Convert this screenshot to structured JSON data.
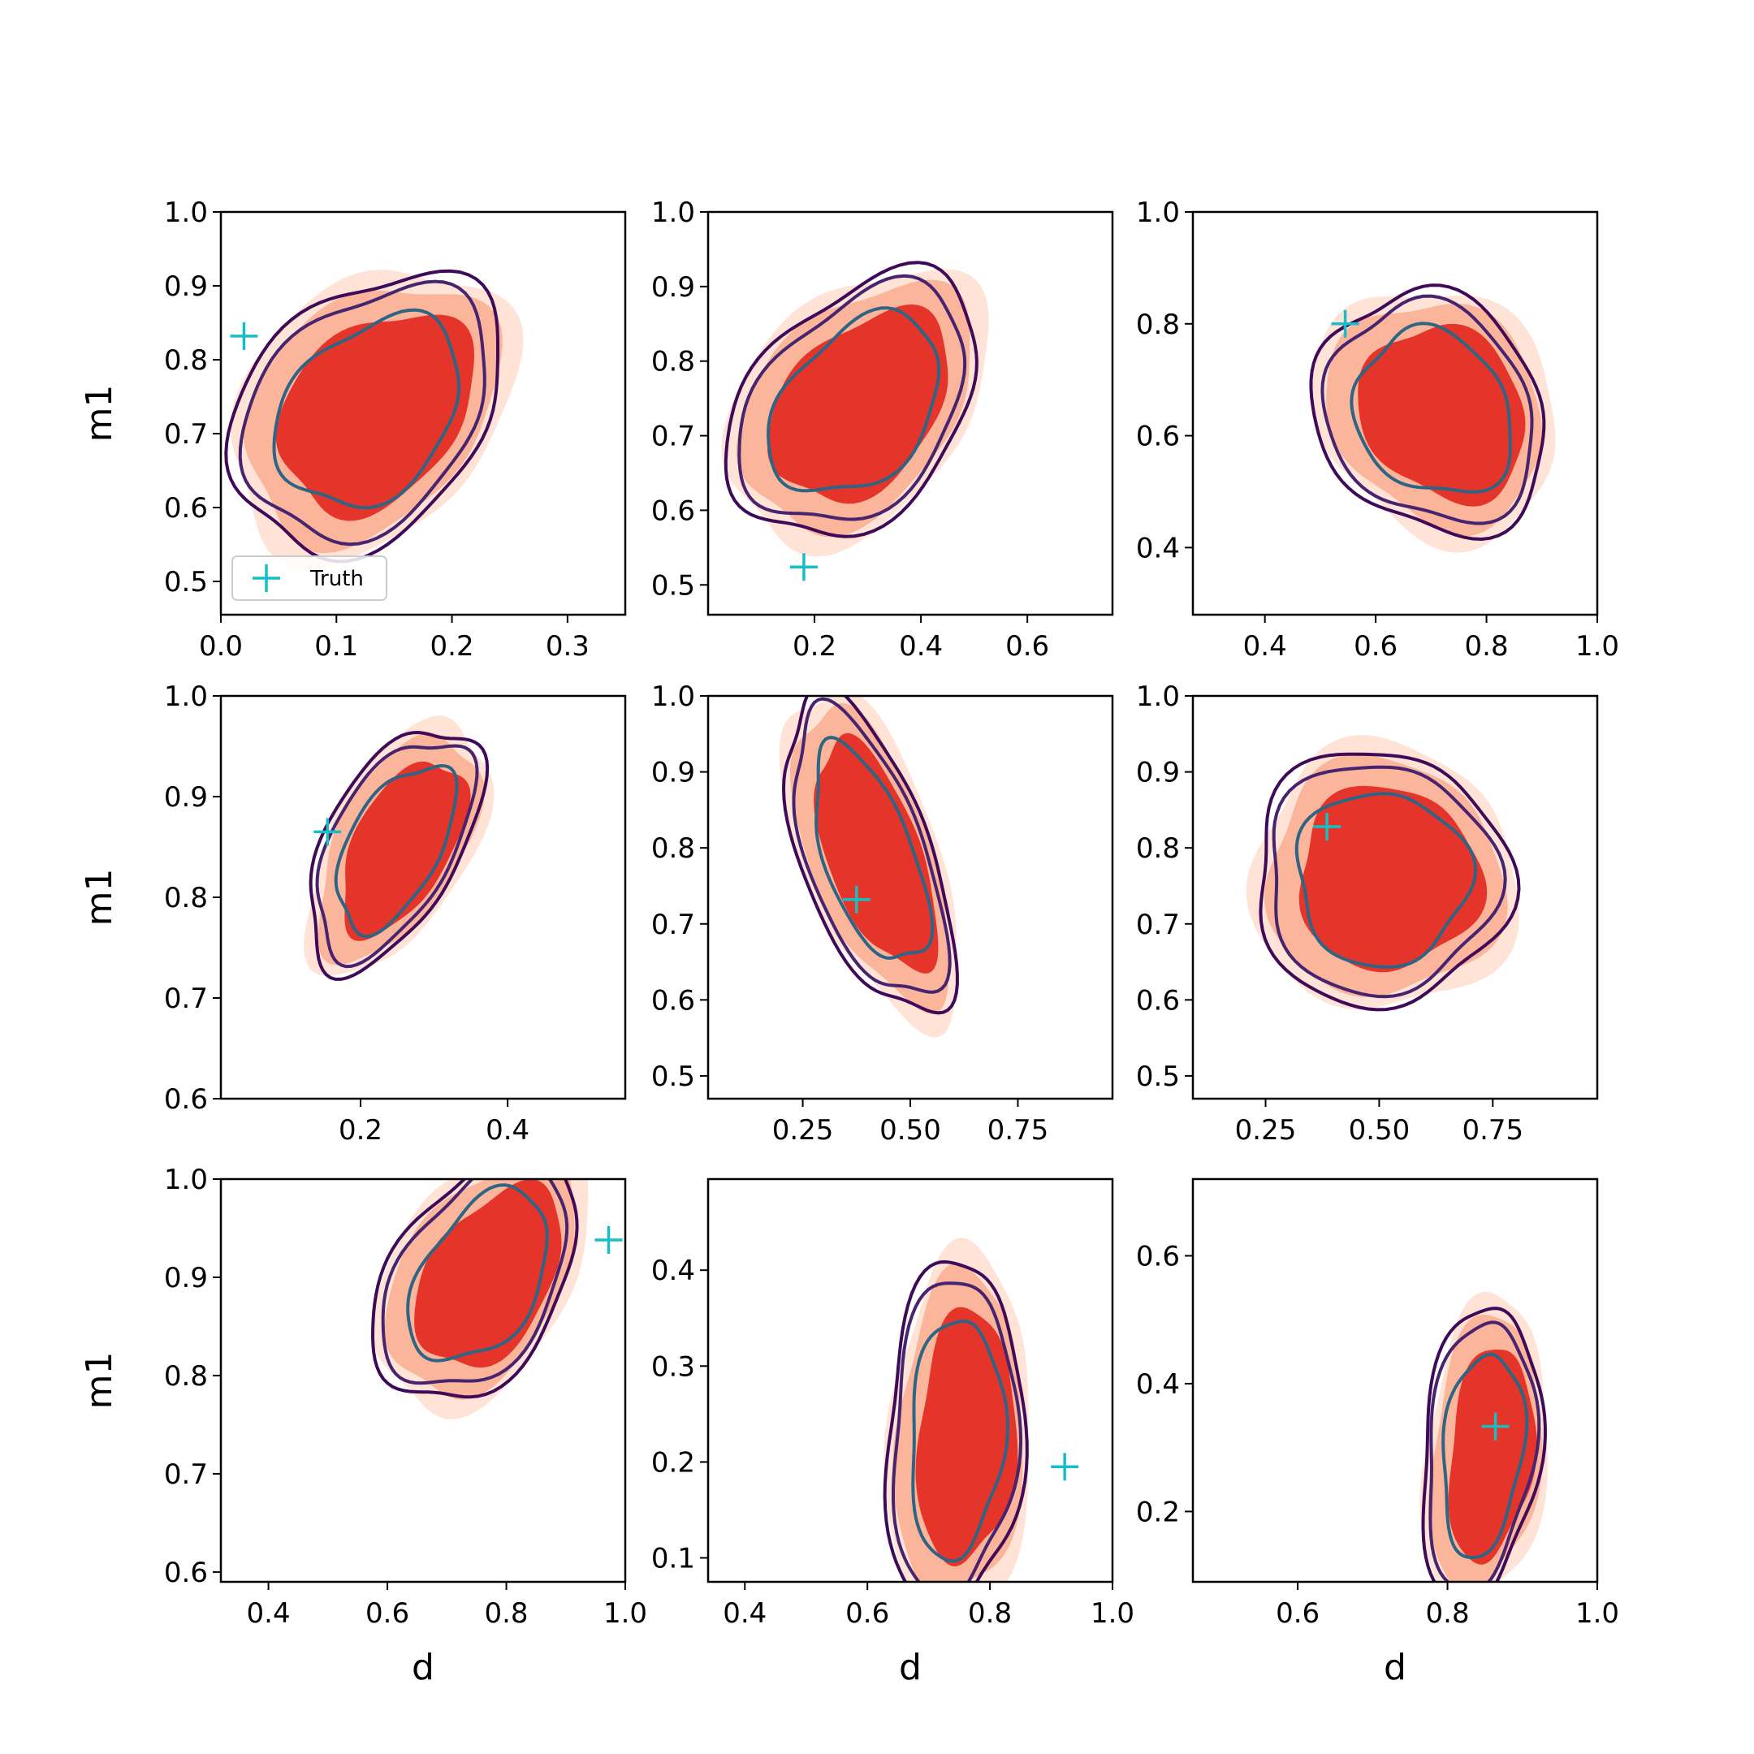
{
  "figure": {
    "colors": {
      "fill_outer": "#fee3d6",
      "fill_mid": "#fbb59b",
      "fill_inner": "#e5342a",
      "line_outer": "#3f0a58",
      "line_mid": "#47246f",
      "line_inner": "#2f6584",
      "truth": "#17bfc4"
    },
    "legend": {
      "label": "Truth",
      "panel": 0,
      "placement": "lower-left"
    }
  },
  "chart_data": [
    {
      "type": "contour",
      "title": "",
      "xlabel": "",
      "ylabel": "m1",
      "xlim": [
        0.0,
        0.35
      ],
      "ylim": [
        0.455,
        1.0
      ],
      "xticks": [
        "0.0",
        "0.1",
        "0.2",
        "0.3"
      ],
      "yticks": [
        "0.5",
        "0.6",
        "0.7",
        "0.8",
        "0.9",
        "1.0"
      ],
      "truth": [
        0.02,
        0.832
      ],
      "center": [
        0.13,
        0.73
      ],
      "extent": [
        0.095,
        0.25
      ],
      "tilt": -0.83
    },
    {
      "type": "contour",
      "title": "",
      "xlabel": "",
      "ylabel": "",
      "xlim": [
        0.0,
        0.76
      ],
      "ylim": [
        0.46,
        1.0
      ],
      "xticks": [
        "0.2",
        "0.4",
        "0.6"
      ],
      "yticks": [
        "0.5",
        "0.6",
        "0.7",
        "0.8",
        "0.9",
        "1.0"
      ],
      "truth": [
        0.18,
        0.524
      ],
      "center": [
        0.28,
        0.74
      ],
      "extent": [
        0.13,
        0.25
      ],
      "tilt": -0.86
    },
    {
      "type": "contour",
      "title": "",
      "xlabel": "",
      "ylabel": "",
      "xlim": [
        0.27,
        1.0
      ],
      "ylim": [
        0.28,
        1.0
      ],
      "xticks": [
        "0.4",
        "0.6",
        "0.8",
        "1.0"
      ],
      "yticks": [
        "0.4",
        "0.6",
        "0.8",
        "1.0"
      ],
      "truth": [
        0.545,
        0.8
      ],
      "center": [
        0.71,
        0.64
      ],
      "extent": [
        0.25,
        0.23
      ],
      "tilt": -0.65
    },
    {
      "type": "contour",
      "title": "",
      "xlabel": "",
      "ylabel": "m1",
      "xlim": [
        0.01,
        0.56
      ],
      "ylim": [
        0.6,
        1.0
      ],
      "xticks": [
        "0.2",
        "0.4"
      ],
      "yticks": [
        "0.6",
        "0.7",
        "0.8",
        "0.9",
        "1.0"
      ],
      "truth": [
        0.155,
        0.865
      ],
      "center": [
        0.25,
        0.85
      ],
      "extent": [
        0.14,
        0.11
      ],
      "tilt": 0.5
    },
    {
      "type": "contour",
      "title": "",
      "xlabel": "",
      "ylabel": "",
      "xlim": [
        0.03,
        0.97
      ],
      "ylim": [
        0.47,
        1.0
      ],
      "xticks": [
        "0.25",
        "0.50",
        "0.75"
      ],
      "yticks": [
        "0.5",
        "0.6",
        "0.7",
        "0.8",
        "0.9",
        "1.0"
      ],
      "truth": [
        0.375,
        0.732
      ],
      "center": [
        0.41,
        0.79
      ],
      "extent": [
        0.2,
        0.19
      ],
      "tilt": -0.35
    },
    {
      "type": "contour",
      "title": "",
      "xlabel": "",
      "ylabel": "",
      "xlim": [
        0.09,
        0.98
      ],
      "ylim": [
        0.47,
        1.0
      ],
      "xticks": [
        "0.25",
        "0.50",
        "0.75"
      ],
      "yticks": [
        "0.5",
        "0.6",
        "0.7",
        "0.8",
        "0.9",
        "1.0"
      ],
      "truth": [
        0.385,
        0.828
      ],
      "center": [
        0.51,
        0.76
      ],
      "extent": [
        0.2,
        0.24
      ],
      "tilt": -0.7
    },
    {
      "type": "contour",
      "title": "",
      "xlabel": "d",
      "ylabel": "m1",
      "xlim": [
        0.32,
        1.0
      ],
      "ylim": [
        0.59,
        1.0
      ],
      "xticks": [
        "0.4",
        "0.6",
        "0.8",
        "1.0"
      ],
      "yticks": [
        "0.6",
        "0.7",
        "0.8",
        "0.9",
        "1.0"
      ],
      "truth": [
        0.972,
        0.938
      ],
      "center": [
        0.76,
        0.9
      ],
      "extent": [
        0.24,
        0.1
      ],
      "tilt": 0.55
    },
    {
      "type": "contour",
      "title": "",
      "xlabel": "d",
      "ylabel": "",
      "xlim": [
        0.34,
        1.0
      ],
      "ylim": [
        0.075,
        0.495
      ],
      "xticks": [
        "0.4",
        "0.6",
        "0.8",
        "1.0"
      ],
      "yticks": [
        "0.1",
        "0.2",
        "0.3",
        "0.4"
      ],
      "truth": [
        0.922,
        0.195
      ],
      "center": [
        0.75,
        0.225
      ],
      "extent": [
        0.23,
        0.11
      ],
      "tilt": 0.05
    },
    {
      "type": "contour",
      "title": "",
      "xlabel": "d",
      "ylabel": "",
      "xlim": [
        0.46,
        1.0
      ],
      "ylim": [
        0.09,
        0.72
      ],
      "xticks": [
        "0.6",
        "0.8",
        "1.0"
      ],
      "yticks": [
        "0.2",
        "0.4",
        "0.6"
      ],
      "truth": [
        0.864,
        0.333
      ],
      "center": [
        0.85,
        0.29
      ],
      "extent": [
        0.16,
        0.14
      ],
      "tilt": 0.1
    }
  ]
}
